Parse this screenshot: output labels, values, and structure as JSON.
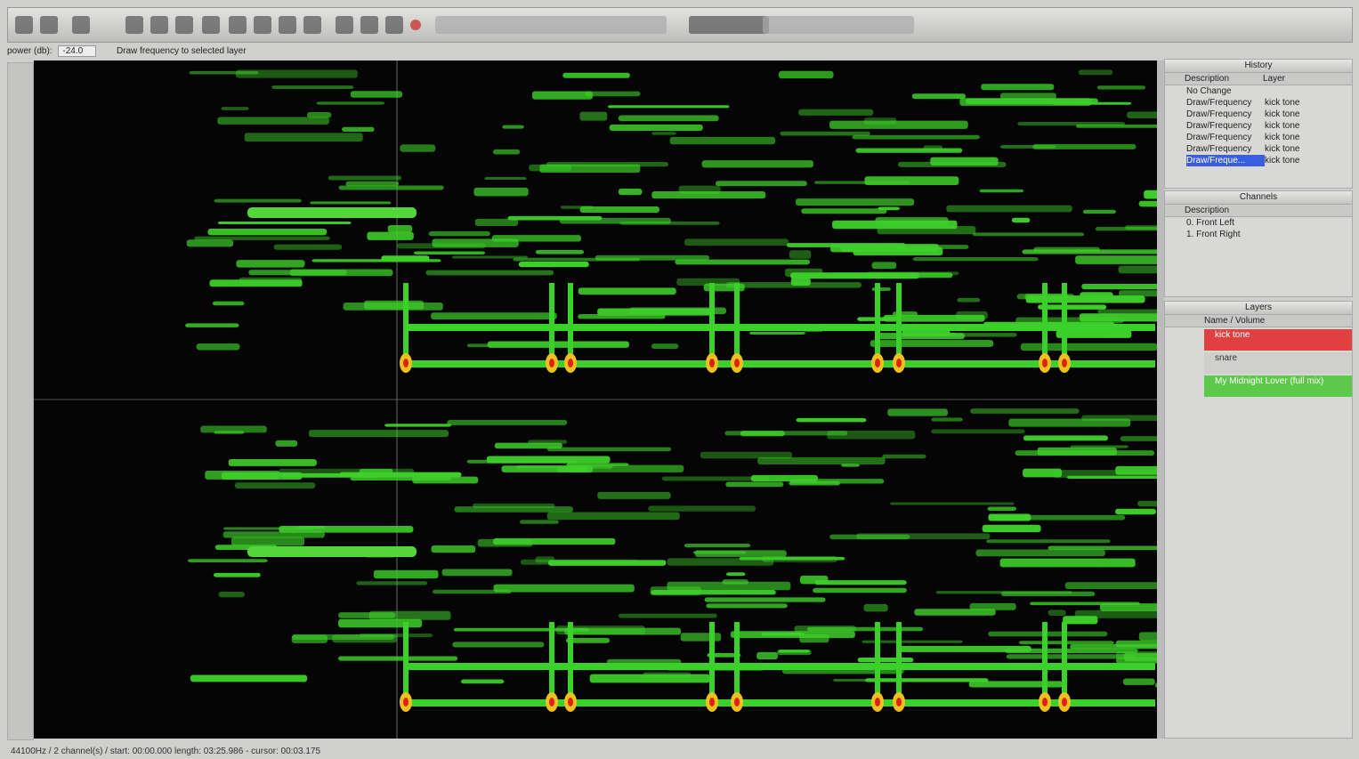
{
  "toolbar": {
    "power_label": "power (db):",
    "power_value": "-24.0",
    "hint": "Draw frequency to selected layer"
  },
  "history": {
    "title": "History",
    "columns": [
      "Description",
      "Layer"
    ],
    "rows": [
      [
        "No Change",
        ""
      ],
      [
        "Draw/Frequency",
        "kick tone"
      ],
      [
        "Draw/Frequency",
        "kick tone"
      ],
      [
        "Draw/Frequency",
        "kick tone"
      ],
      [
        "Draw/Frequency",
        "kick tone"
      ],
      [
        "Draw/Frequency",
        "kick tone"
      ],
      [
        "Draw/Freque...",
        "kick tone"
      ]
    ]
  },
  "channels": {
    "title": "Channels",
    "column": "Description",
    "rows": [
      "0. Front Left",
      "1. Front Right"
    ]
  },
  "layers": {
    "title": "Layers",
    "column": "Name / Volume",
    "rows": [
      "kick tone",
      "snare",
      "My Midnight Lover (full mix)"
    ]
  },
  "status": "44100Hz / 2 channel(s) / start: 00:00.000 length: 03:25.986 - cursor: 00:03.175"
}
